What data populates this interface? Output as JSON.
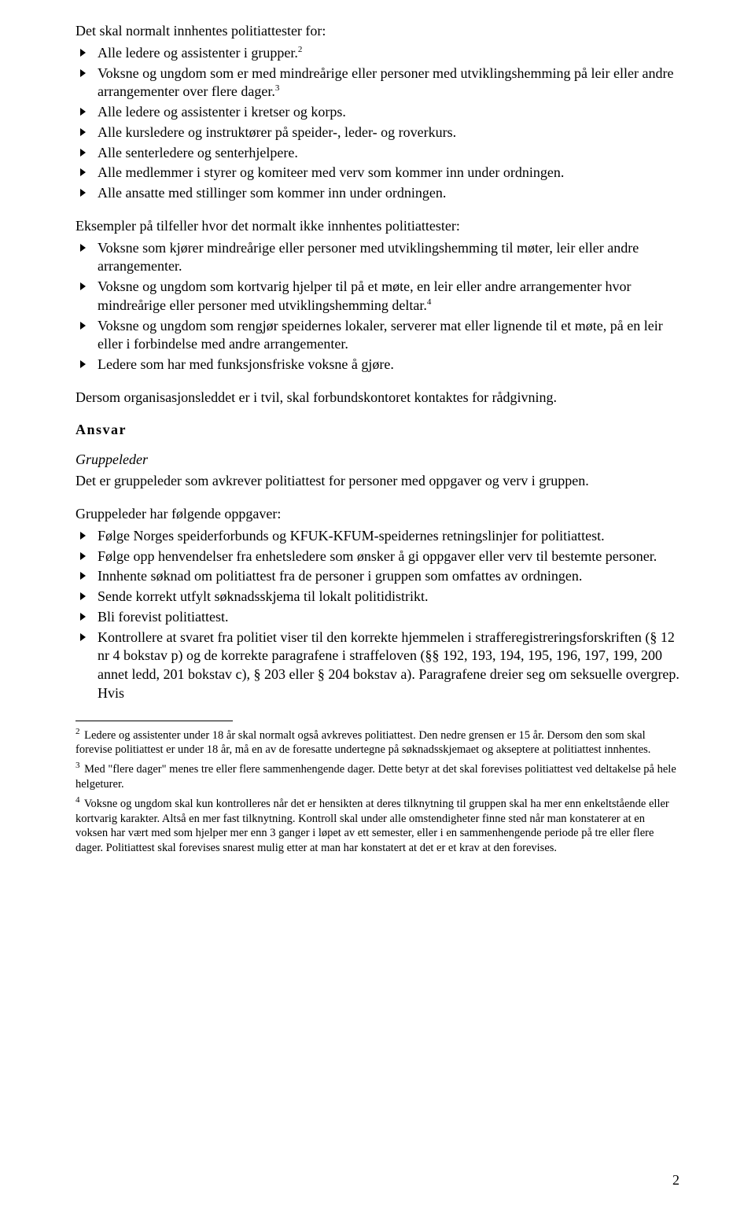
{
  "intro_line": "Det skal normalt innhentes politiattester for:",
  "list1": [
    {
      "text": "Alle ledere og assistenter i grupper.",
      "sup": "2"
    },
    {
      "text": "Voksne og ungdom som er med mindreårige eller personer med utviklingshemming på leir eller andre arrangementer over flere dager.",
      "sup": "3"
    },
    {
      "text": "Alle ledere og assistenter i kretser og korps."
    },
    {
      "text": "Alle kursledere og instruktører på speider-, leder- og roverkurs."
    },
    {
      "text": "Alle senterledere og senterhjelpere."
    },
    {
      "text": "Alle medlemmer i styrer og komiteer med verv som kommer inn under ordningen."
    },
    {
      "text": "Alle ansatte med stillinger som kommer inn under ordningen."
    }
  ],
  "examples_intro": "Eksempler på tilfeller hvor det normalt ikke innhentes politiattester:",
  "list2": [
    {
      "text": "Voksne som kjører mindreårige eller personer med utviklingshemming til møter, leir eller andre arrangementer."
    },
    {
      "text": "Voksne og ungdom som kortvarig hjelper til på et møte, en leir eller andre arrangementer hvor mindreårige eller personer med utviklingshemming deltar.",
      "sup": "4"
    },
    {
      "text": "Voksne og ungdom som rengjør speidernes lokaler, serverer mat eller lignende til et møte, på en leir eller i forbindelse med andre arrangementer."
    },
    {
      "text": "Ledere som har med funksjonsfriske voksne å gjøre."
    }
  ],
  "doubt_para": "Dersom organisasjonsleddet er i tvil, skal forbundskontoret kontaktes for rådgivning.",
  "ansvar_heading": "Ansvar",
  "gruppeleder_label": "Gruppeleder",
  "gruppeleder_para": "Det er gruppeleder som avkrever politiattest for personer med oppgaver og verv i gruppen.",
  "gruppeleder_tasks_intro": "Gruppeleder har følgende oppgaver:",
  "list3": [
    {
      "text": "Følge Norges speiderforbunds og KFUK-KFUM-speidernes retningslinjer for politiattest."
    },
    {
      "text": "Følge opp henvendelser fra enhetsledere som ønsker å gi oppgaver eller verv til bestemte personer."
    },
    {
      "text": "Innhente søknad om politiattest fra de personer i gruppen som omfattes av ordningen."
    },
    {
      "text": "Sende korrekt utfylt søknadsskjema til lokalt politidistrikt."
    },
    {
      "text": "Bli forevist politiattest."
    },
    {
      "text": "Kontrollere at svaret fra politiet viser til den korrekte hjemmelen i strafferegistreringsforskriften (§ 12 nr 4 bokstav p) og de korrekte paragrafene i straffeloven (§§ 192, 193, 194, 195, 196, 197, 199, 200 annet ledd, 201 bokstav c), § 203 eller § 204 bokstav a). Paragrafene dreier seg om seksuelle overgrep. Hvis"
    }
  ],
  "footnotes": [
    {
      "num": "2",
      "text": "Ledere og assistenter under 18 år skal normalt også avkreves politiattest. Den nedre grensen er 15 år. Dersom den som skal forevise politiattest er under 18 år, må en av de foresatte undertegne på søknadsskjemaet og akseptere at politiattest innhentes."
    },
    {
      "num": "3",
      "text": "Med \"flere dager\" menes tre eller flere sammenhengende dager. Dette betyr at det skal forevises politiattest ved deltakelse på hele helgeturer."
    },
    {
      "num": "4",
      "text": "Voksne og ungdom skal kun kontrolleres når det er hensikten at deres tilknytning til gruppen skal ha mer enn enkeltstående eller kortvarig karakter. Altså en mer fast tilknytning. Kontroll skal under alle omstendigheter finne sted når man konstaterer at en voksen har vært med som hjelper mer enn 3 ganger i løpet av ett semester, eller i en sammenhengende periode på tre eller flere dager. Politiattest skal forevises snarest mulig etter at man har konstatert at det er et krav at den forevises."
    }
  ],
  "page_number": "2"
}
